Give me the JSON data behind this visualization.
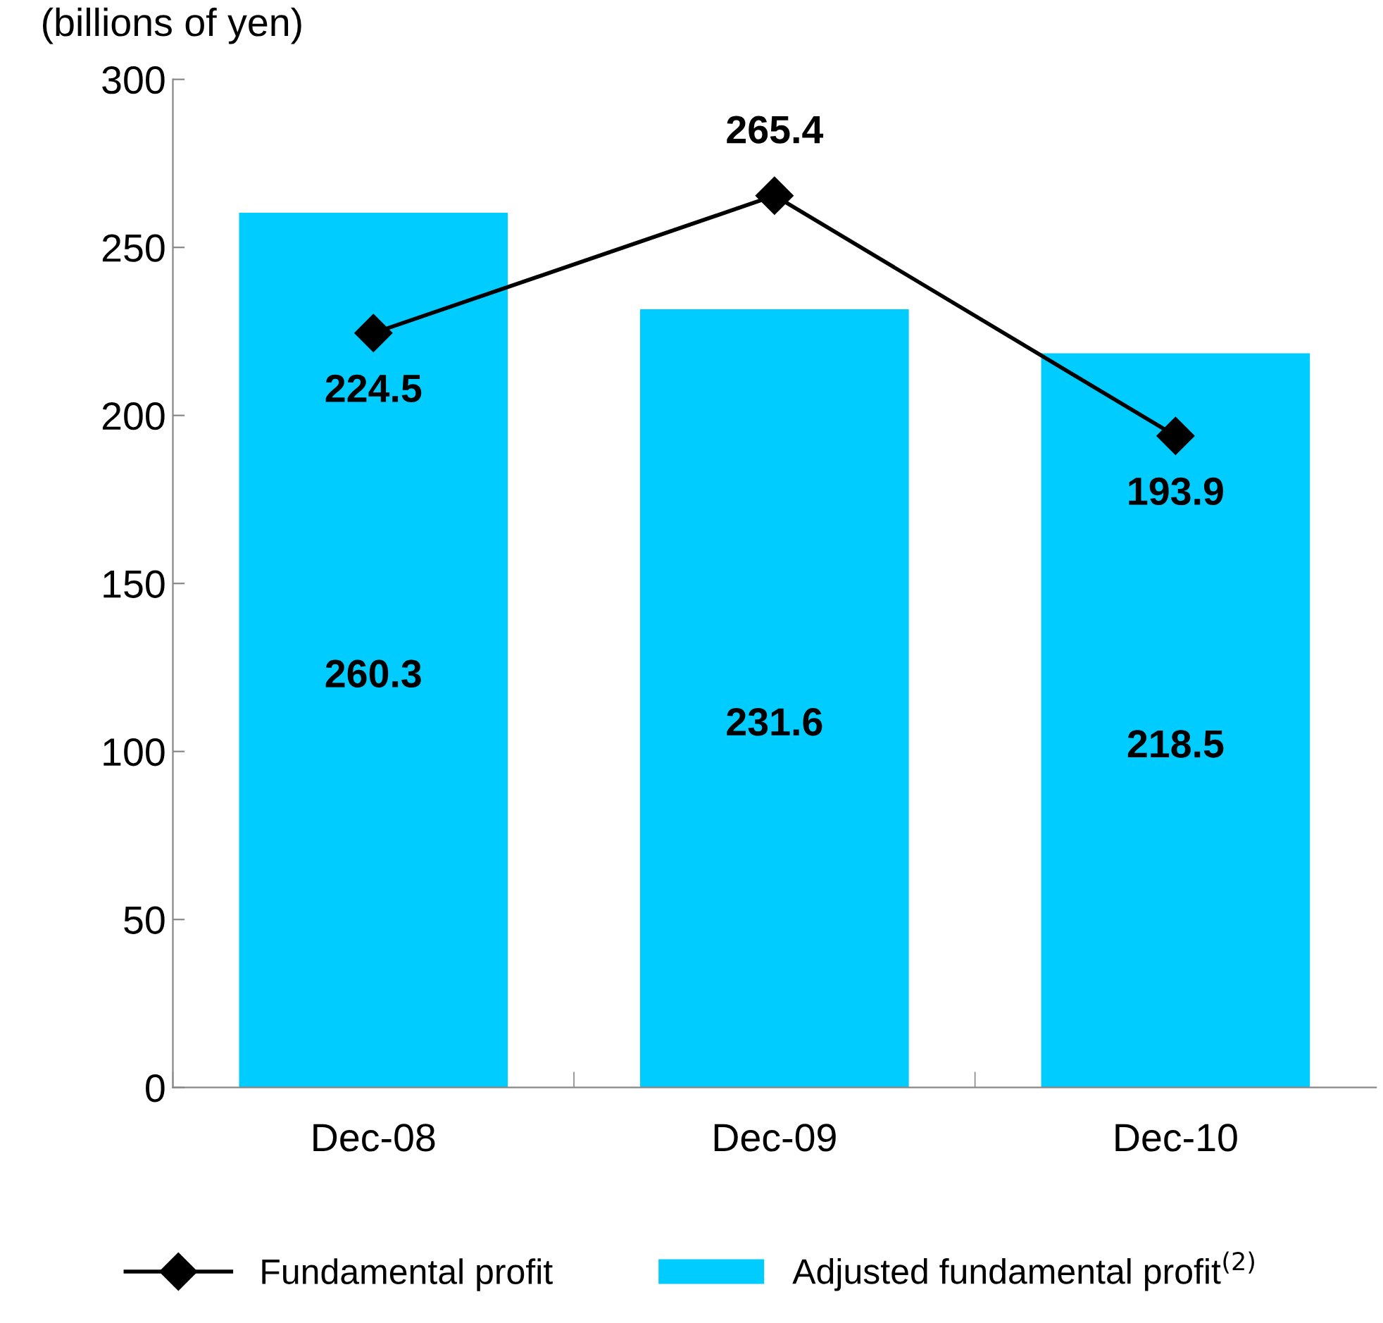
{
  "chart_data": {
    "type": "bar",
    "ylabel": "(billions of yen)",
    "categories": [
      "Dec-08",
      "Dec-09",
      "Dec-10"
    ],
    "series": [
      {
        "name": "Adjusted fundamental profit$^{(2)}$",
        "color": "#00ccff",
        "values": [
          260.3,
          231.6,
          218.5
        ]
      },
      {
        "name": "Fundamental profit",
        "type": "line",
        "color": "#000000",
        "marker": "diamond",
        "values": [
          224.5,
          265.4,
          193.9
        ]
      }
    ],
    "ylim": [
      0,
      300
    ],
    "yticks": [
      0,
      50,
      100,
      150,
      200,
      250,
      300
    ],
    "grid": false,
    "legend": "bottom",
    "data_labels": true
  }
}
